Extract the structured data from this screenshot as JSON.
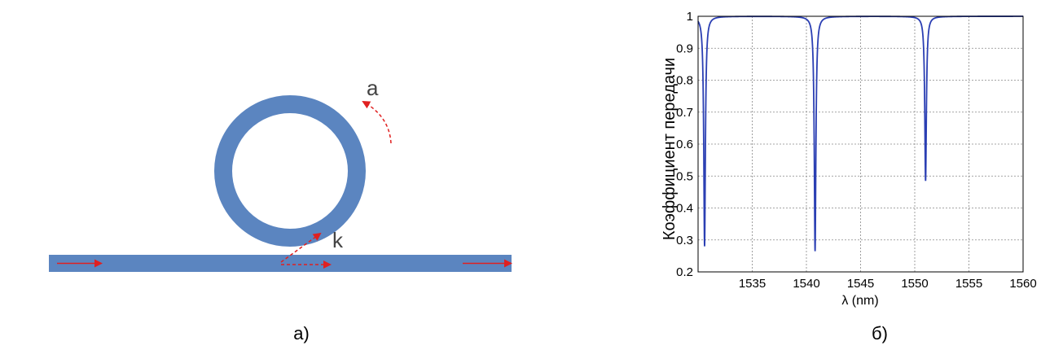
{
  "diagram": {
    "labels": {
      "a": "a",
      "k": "k"
    },
    "colors": {
      "waveguide": "#5b85c0",
      "arrow": "#e02020"
    },
    "caption": "а)"
  },
  "chart": {
    "caption": "б)",
    "color_line": "#2b3fb3"
  },
  "chart_data": {
    "type": "line",
    "xlabel": "λ (nm)",
    "ylabel": "Коэффициент передачи",
    "xlim": [
      1530,
      1560
    ],
    "ylim": [
      0.2,
      1.0
    ],
    "xticks": [
      1535,
      1540,
      1545,
      1550,
      1555,
      1560
    ],
    "yticks": [
      0.2,
      0.3,
      0.4,
      0.5,
      0.6,
      0.7,
      0.8,
      0.9,
      1
    ],
    "xtick_labels": [
      "1535",
      "1540",
      "1545",
      "1550",
      "1555",
      "1560"
    ],
    "ytick_labels": [
      "0.2",
      "0.3",
      "0.4",
      "0.5",
      "0.6",
      "0.7",
      "0.8",
      "0.9",
      "1"
    ],
    "grid": true,
    "resonances": [
      {
        "x": 1530.6,
        "min": 0.28
      },
      {
        "x": 1540.8,
        "min": 0.265
      },
      {
        "x": 1551.0,
        "min": 0.485
      }
    ],
    "baseline": 1.0
  }
}
